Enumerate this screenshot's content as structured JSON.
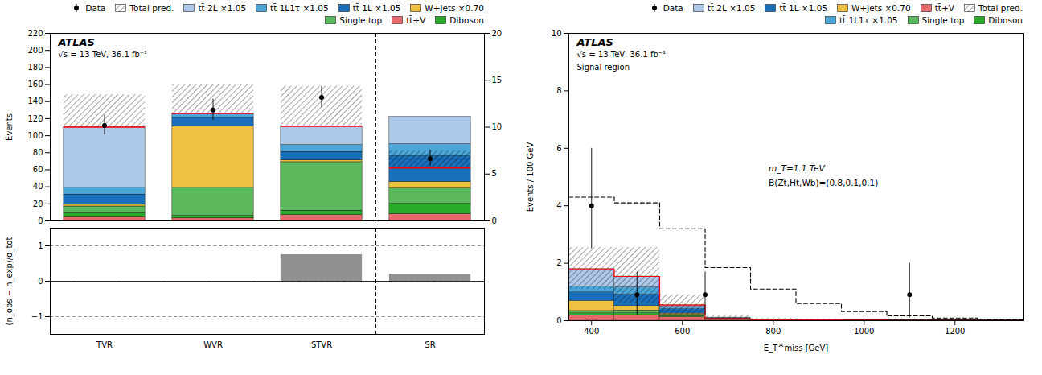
{
  "chart_data": [
    {
      "type": "bar",
      "stacked": true,
      "categories": [
        "TVR",
        "WVR",
        "STVR",
        "SR"
      ],
      "ylabel": "Events",
      "ylim": [
        0,
        220
      ],
      "yticks": [
        0,
        20,
        40,
        60,
        80,
        100,
        120,
        140,
        160,
        180,
        200,
        220
      ],
      "y2lim": [
        0,
        20
      ],
      "y2ticks": [
        0,
        5,
        10,
        15,
        20
      ],
      "tick_labels": "y",
      "series": [
        {
          "name": "tt̄+V",
          "color": "#e8696b",
          "values": [
            4,
            3,
            7,
            8
          ]
        },
        {
          "name": "Diboson",
          "color": "#2aaa2a",
          "values": [
            5,
            3,
            5,
            12
          ]
        },
        {
          "name": "Single top",
          "color": "#5cb85c",
          "values": [
            8,
            33,
            57,
            18
          ]
        },
        {
          "name": "W+jets ×0.70",
          "color": "#f0c040",
          "values": [
            2,
            72,
            2,
            8
          ]
        },
        {
          "name": "tt̄ 1L ×1.05",
          "color": "#1a6fba",
          "values": [
            12,
            10,
            10,
            30
          ]
        },
        {
          "name": "tt̄ 1L1τ ×1.05",
          "color": "#4da6d8",
          "values": [
            8,
            5,
            8,
            14
          ]
        },
        {
          "name": "tt̄ 2L ×1.05",
          "color": "#adc8e8",
          "values": [
            71,
            0,
            22,
            32
          ]
        },
        {
          "name": "Total pred.",
          "type": "band",
          "color": "red",
          "values": [
            110,
            126,
            111,
            62
          ],
          "band_up": [
            148,
            160,
            158,
            82
          ],
          "band_dn": [
            110,
            126,
            111,
            62
          ]
        },
        {
          "name": "Data",
          "type": "scatter",
          "marker": "o",
          "color": "black",
          "values": [
            112,
            130,
            145,
            73
          ],
          "errors_up": [
            12,
            13,
            13,
            10
          ],
          "errors_dn": [
            11,
            12,
            12,
            9
          ]
        }
      ],
      "legend": "upper right",
      "legend_entries": [
        "Data",
        "Total pred.",
        "tt̄ 2L ×1.05",
        "tt̄ 1L1τ ×1.05",
        "tt̄ 1L ×1.05",
        "W+jets ×0.70",
        "Single top",
        "tt̄+V",
        "Diboson"
      ],
      "annotations": [
        "ATLAS",
        "√s = 13 TeV, 36.1 fb⁻¹"
      ],
      "dividers": [
        {
          "after": "STVR",
          "line_style": "dashed",
          "color": "black"
        }
      ]
    },
    {
      "type": "bar",
      "categories": [
        "TVR",
        "WVR",
        "STVR",
        "SR"
      ],
      "ylabel": "(n_obs − n_exp)/σ_tot",
      "ylim": [
        -1.5,
        1.5
      ],
      "yticks": [
        -1,
        0,
        1
      ],
      "grid": true,
      "values": [
        0.0,
        0.0,
        0.75,
        0.2
      ],
      "colors": [
        "#c0c0c0",
        "#c0c0c0",
        "#909090",
        "#909090"
      ],
      "dividers": [
        {
          "after": "STVR",
          "line_style": "dashed",
          "color": "black"
        }
      ]
    },
    {
      "type": "histogram",
      "stacked": true,
      "bins": [
        350,
        450,
        550,
        650,
        750,
        850,
        950,
        1050,
        1150,
        1250,
        1350
      ],
      "xlabel": "E_T^miss [GeV]",
      "ylabel": "Events / 100 GeV",
      "xlim": [
        350,
        1350
      ],
      "xticks": [
        400,
        600,
        800,
        1000,
        1200
      ],
      "ylim": [
        0,
        10
      ],
      "yticks": [
        0,
        2,
        4,
        6,
        8,
        10
      ],
      "series": [
        {
          "name": "tt̄+V",
          "color": "#e8696b",
          "values": [
            0.18,
            0.18,
            0.12,
            0.03,
            0.01,
            0.005,
            0.002,
            0.001,
            0.001,
            0.001
          ]
        },
        {
          "name": "Diboson",
          "color": "#2aaa2a",
          "values": [
            0.08,
            0.08,
            0.04,
            0.01,
            0.005,
            0.002,
            0.001,
            0.0005,
            0.0005,
            0.0005
          ]
        },
        {
          "name": "Single top",
          "color": "#5cb85c",
          "values": [
            0.08,
            0.1,
            0.05,
            0.02,
            0.01,
            0.005,
            0.002,
            0.001,
            0.001,
            0.001
          ]
        },
        {
          "name": "W+jets ×0.70",
          "color": "#f0c040",
          "values": [
            0.35,
            0.15,
            0.04,
            0.01,
            0.005,
            0.002,
            0.001,
            0.0005,
            0.0005,
            0.0005
          ]
        },
        {
          "name": "tt̄ 1L ×1.05",
          "color": "#1a6fba",
          "values": [
            0.3,
            0.4,
            0.15,
            0.02,
            0.01,
            0.005,
            0.002,
            0.001,
            0.001,
            0.001
          ]
        },
        {
          "name": "tt̄ 1L1τ ×1.05",
          "color": "#4da6d8",
          "values": [
            0.2,
            0.25,
            0.08,
            0.01,
            0.005,
            0.002,
            0.001,
            0.0005,
            0.0005,
            0.0005
          ]
        },
        {
          "name": "tt̄ 2L ×1.05",
          "color": "#adc8e8",
          "values": [
            0.61,
            0.38,
            0.06,
            0.01,
            0.005,
            0.002,
            0.001,
            0.0005,
            0.0005,
            0.0005
          ]
        },
        {
          "name": "Total pred.",
          "type": "band",
          "color": "red",
          "values": [
            1.8,
            1.54,
            0.54,
            0.07,
            0.04,
            0.018,
            0.009,
            0.004,
            0.003,
            0.002
          ],
          "band_up": [
            2.55,
            2.55,
            0.9,
            0.18,
            0.09,
            0.04,
            0.02,
            0.01,
            0.006,
            0.003
          ],
          "band_dn": [
            1.1,
            0.6,
            0.2,
            0.01,
            0.005,
            0.005,
            0.002,
            0.001,
            0.001,
            0.001
          ]
        },
        {
          "type": "step",
          "line_style": "dashed",
          "color": "black",
          "values": [
            4.3,
            4.1,
            3.2,
            1.85,
            1.1,
            0.6,
            0.32,
            0.17,
            0.09,
            0.04
          ]
        },
        {
          "name": "Data",
          "type": "scatter",
          "marker": "o",
          "color": "black",
          "x": [
            400,
            500,
            650,
            1100
          ],
          "values": [
            4.0,
            0.9,
            0.9,
            0.9
          ],
          "errors_up": [
            2.0,
            0.8,
            0.8,
            1.1
          ],
          "errors_dn": [
            1.5,
            0.7,
            0.7,
            0.8
          ]
        }
      ],
      "legend": "upper right",
      "legend_entries": [
        "Data",
        "tt̄ 2L ×1.05",
        "tt̄ 1L ×1.05",
        "W+jets ×0.70",
        "tt̄+V",
        "Total pred.",
        "tt̄ 1L1τ ×1.05",
        "Single top",
        "Diboson"
      ],
      "annotations": [
        "ATLAS",
        "√s = 13 TeV, 36.1 fb⁻¹",
        "Signal region",
        "m_T=1.1 TeV",
        "B(Zt,Ht,Wb)=(0.8,0.1,0.1)"
      ]
    }
  ]
}
